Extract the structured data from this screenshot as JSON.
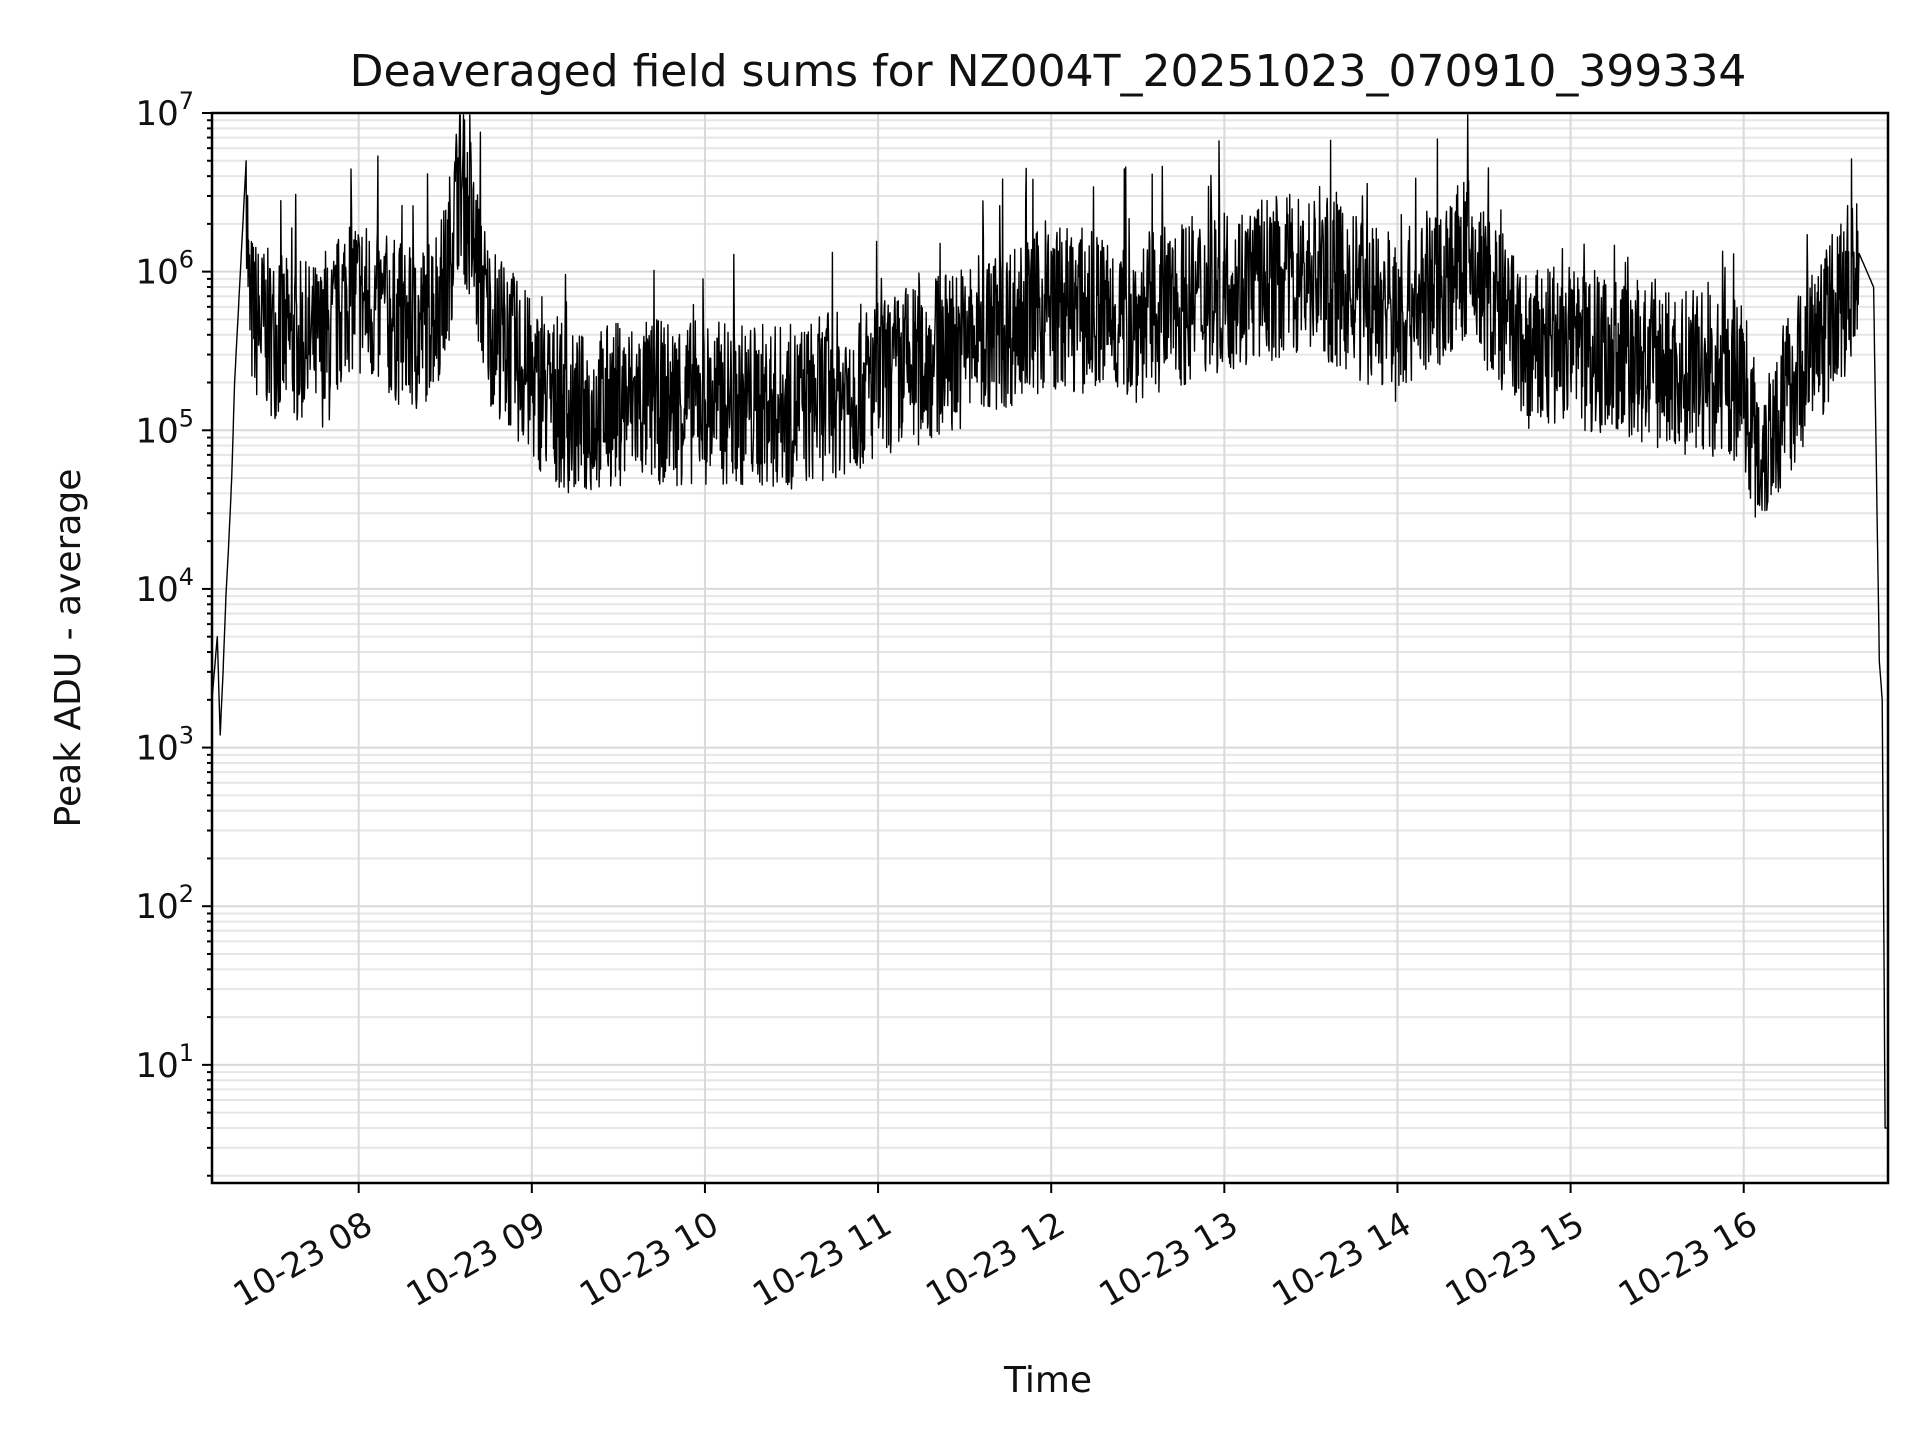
{
  "chart_data": {
    "type": "line",
    "title": "Deaveraged field sums for NZ004T_20251023_070910_399334",
    "xlabel": "Time",
    "ylabel": "Peak ADU - average",
    "yscale": "log",
    "ylim": [
      1.8,
      10000000
    ],
    "xlim": [
      "2025-10-23 07:09:10",
      "2025-10-23 16:50:00"
    ],
    "grid": "on (major and minor)",
    "legend": "none",
    "line_color": "#000000",
    "x_ticks": [
      {
        "t": "2025-10-23 08:00",
        "label": "10-23 08"
      },
      {
        "t": "2025-10-23 09:00",
        "label": "10-23 09"
      },
      {
        "t": "2025-10-23 10:00",
        "label": "10-23 10"
      },
      {
        "t": "2025-10-23 11:00",
        "label": "10-23 11"
      },
      {
        "t": "2025-10-23 12:00",
        "label": "10-23 12"
      },
      {
        "t": "2025-10-23 13:00",
        "label": "10-23 13"
      },
      {
        "t": "2025-10-23 14:00",
        "label": "10-23 14"
      },
      {
        "t": "2025-10-23 15:00",
        "label": "10-23 15"
      },
      {
        "t": "2025-10-23 16:00",
        "label": "10-23 16"
      }
    ],
    "y_ticks": [
      {
        "value": 10,
        "base": "10",
        "exp": "1"
      },
      {
        "value": 100,
        "base": "10",
        "exp": "2"
      },
      {
        "value": 1000,
        "base": "10",
        "exp": "3"
      },
      {
        "value": 10000,
        "base": "10",
        "exp": "4"
      },
      {
        "value": 100000,
        "base": "10",
        "exp": "5"
      },
      {
        "value": 1000000,
        "base": "10",
        "exp": "6"
      },
      {
        "value": 10000000,
        "base": "10",
        "exp": "7"
      }
    ],
    "series": [
      {
        "x": [
          "2025-10-23 07:09:10",
          "2025-10-23 07:11",
          "2025-10-23 07:12",
          "2025-10-23 07:13",
          "2025-10-23 07:14",
          "2025-10-23 07:15",
          "2025-10-23 07:16",
          "2025-10-23 07:17",
          "2025-10-23 07:19",
          "2025-10-23 07:21",
          "2025-10-23 07:22",
          "2025-10-23 07:24",
          "2025-10-23 07:30",
          "2025-10-23 07:40",
          "2025-10-23 07:50",
          "2025-10-23 07:56",
          "2025-10-23 08:05",
          "2025-10-23 08:20",
          "2025-10-23 08:30",
          "2025-10-23 08:35",
          "2025-10-23 08:45",
          "2025-10-23 09:00",
          "2025-10-23 09:15",
          "2025-10-23 09:30",
          "2025-10-23 10:00",
          "2025-10-23 10:30",
          "2025-10-23 11:00",
          "2025-10-23 11:30",
          "2025-10-23 12:00",
          "2025-10-23 12:30",
          "2025-10-23 13:00",
          "2025-10-23 13:30",
          "2025-10-23 14:00",
          "2025-10-23 14:24",
          "2025-10-23 14:45",
          "2025-10-23 15:00",
          "2025-10-23 15:30",
          "2025-10-23 16:00",
          "2025-10-23 16:05",
          "2025-10-23 16:20",
          "2025-10-23 16:35",
          "2025-10-23 16:40",
          "2025-10-23 16:45",
          "2025-10-23 16:47",
          "2025-10-23 16:48",
          "2025-10-23 16:49",
          "2025-10-23 16:50"
        ],
        "y": [
          2000,
          5000,
          1200,
          3000,
          9000,
          20000,
          50000,
          200000,
          1000000,
          5000000,
          600000,
          500000,
          400000,
          350000,
          350000,
          800000,
          600000,
          400000,
          800000,
          4000000,
          500000,
          200000,
          120000,
          150000,
          150000,
          140000,
          200000,
          350000,
          600000,
          500000,
          800000,
          1000000,
          500000,
          1200000,
          300000,
          350000,
          250000,
          200000,
          70000,
          250000,
          700000,
          1300000,
          800000,
          3500,
          2000,
          4,
          4
        ]
      }
    ]
  }
}
